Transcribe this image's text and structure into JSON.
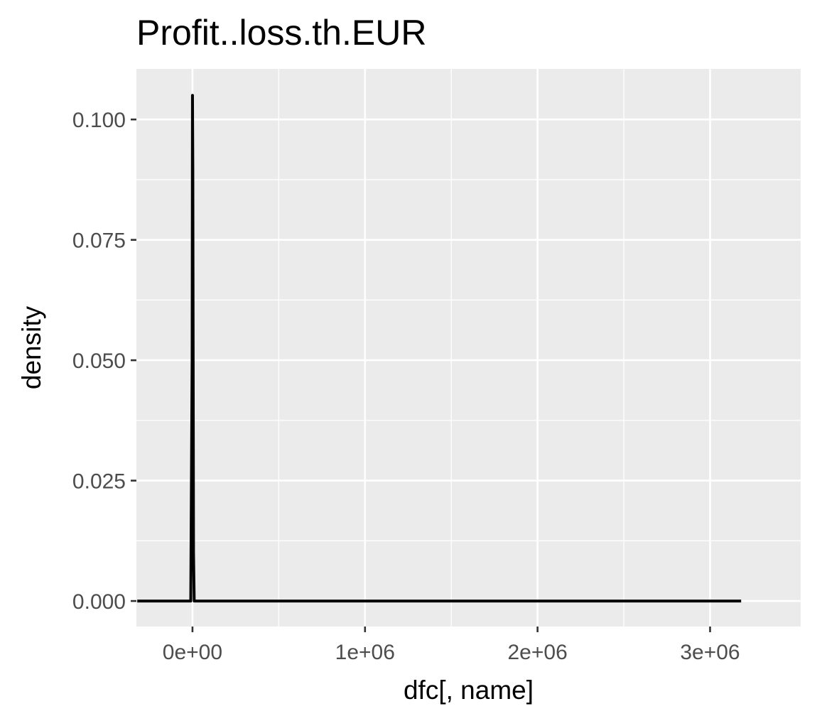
{
  "chart_data": {
    "type": "line",
    "title": "Profit..loss.th.EUR",
    "xlabel": "dfc[, name]",
    "ylabel": "density",
    "xlim": [
      -325000,
      3525000
    ],
    "ylim": [
      -0.0053,
      0.1105
    ],
    "x_ticks": [
      0,
      1000000,
      2000000,
      3000000
    ],
    "x_tick_labels": [
      "0e+00",
      "1e+06",
      "2e+06",
      "3e+06"
    ],
    "x_minor_ticks": [
      500000,
      1500000,
      2500000
    ],
    "y_ticks": [
      0,
      0.025,
      0.05,
      0.075,
      0.1
    ],
    "y_tick_labels": [
      "0.000",
      "0.025",
      "0.050",
      "0.075",
      "0.100"
    ],
    "y_minor_ticks": [
      0.0125,
      0.0375,
      0.0625,
      0.0875
    ],
    "grid": true,
    "background": "#ebebeb",
    "grid_color": "#ffffff",
    "series": [
      {
        "color": "#000000",
        "x": [
          -320000,
          -10000,
          -2000,
          0,
          2000,
          4000,
          6000,
          10000,
          20000,
          3180000
        ],
        "y": [
          0,
          0,
          0.05,
          0.105,
          0.09,
          0.05,
          0.01,
          0,
          0,
          0
        ]
      }
    ]
  }
}
